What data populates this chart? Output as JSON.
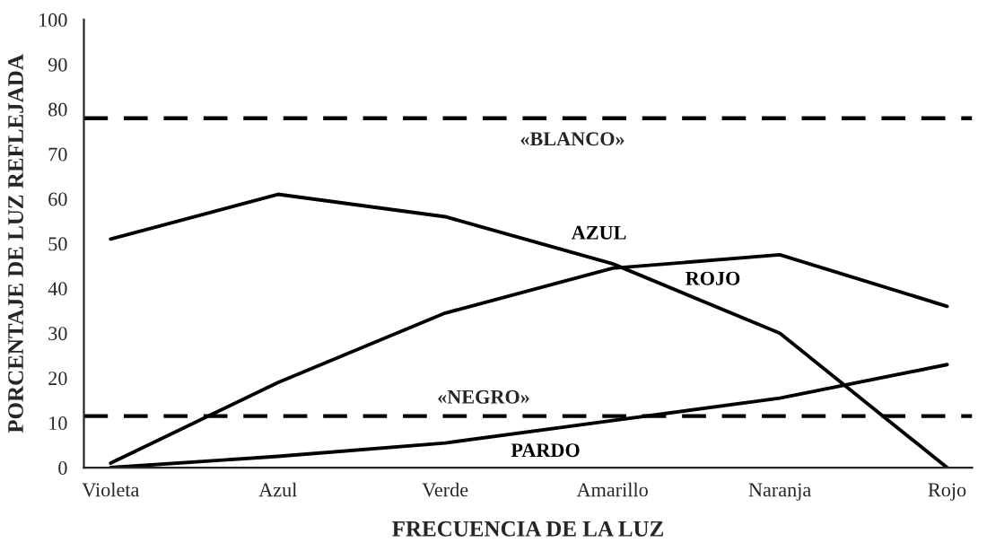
{
  "chart_data": {
    "type": "line",
    "xlabel": "FRECUENCIA DE LA LUZ",
    "ylabel": "PORCENTAJE DE LUZ REFLEJADA",
    "categories": [
      "Violeta",
      "Azul",
      "Verde",
      "Amarillo",
      "Naranja",
      "Rojo"
    ],
    "ylim": [
      0,
      100
    ],
    "yticks": [
      0,
      10,
      20,
      30,
      40,
      50,
      60,
      70,
      80,
      90,
      100
    ],
    "line_style": "solid",
    "series": [
      {
        "name": "AZUL",
        "color": "#000000",
        "values": [
          51,
          61,
          56,
          45.5,
          30,
          0
        ]
      },
      {
        "name": "ROJO",
        "color": "#000000",
        "values": [
          1,
          19,
          34.5,
          44.5,
          47.5,
          36
        ]
      },
      {
        "name": "PARDO",
        "color": "#000000",
        "values": [
          0,
          2.5,
          5.5,
          10.5,
          15.5,
          23
        ]
      }
    ],
    "ref_lines": [
      {
        "axis": "y",
        "value": 78,
        "label": "«BLANCO»",
        "color": "#000000",
        "line_style": "dashed"
      },
      {
        "axis": "y",
        "value": 11.5,
        "label": "«NEGRO»",
        "color": "#000000",
        "line_style": "dashed"
      }
    ]
  }
}
